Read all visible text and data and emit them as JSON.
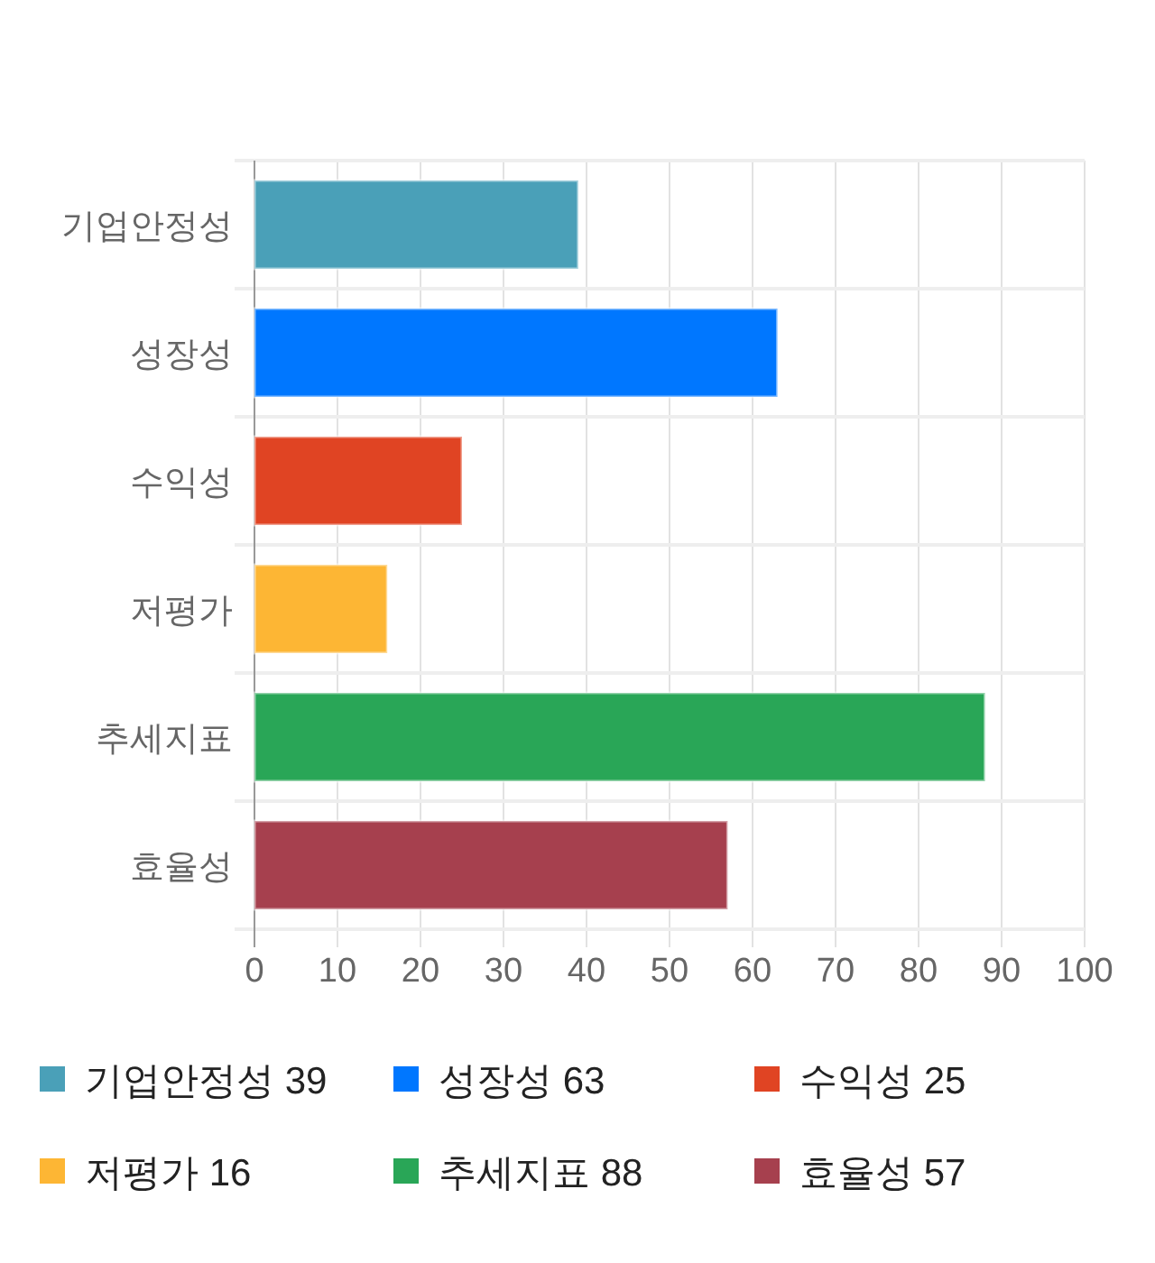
{
  "chart_data": {
    "type": "bar",
    "orientation": "horizontal",
    "stacked": true,
    "categories": [
      "기업안정성",
      "성장성",
      "수익성",
      "저평가",
      "추세지표",
      "효율성"
    ],
    "series": [
      {
        "name": "기업안정성 39",
        "color": "#4aa0b8",
        "values": [
          39,
          null,
          null,
          null,
          null,
          null
        ]
      },
      {
        "name": "성장성 63",
        "color": "#0077ff",
        "values": [
          null,
          63,
          null,
          null,
          null,
          null
        ]
      },
      {
        "name": "수익성 25",
        "color": "#e04423",
        "values": [
          null,
          null,
          25,
          null,
          null,
          null
        ]
      },
      {
        "name": "저평가 16",
        "color": "#fdb634",
        "values": [
          null,
          null,
          null,
          16,
          null,
          null
        ]
      },
      {
        "name": "추세지표 88",
        "color": "#29a657",
        "values": [
          null,
          null,
          null,
          null,
          88,
          null
        ]
      },
      {
        "name": "효율성 57",
        "color": "#a6404e",
        "values": [
          null,
          null,
          null,
          null,
          null,
          57
        ]
      }
    ],
    "xlim": [
      0,
      100
    ],
    "xticks": [
      0,
      10,
      20,
      30,
      40,
      50,
      60,
      70,
      80,
      90,
      100
    ],
    "grid": true,
    "legend": "bottom"
  }
}
